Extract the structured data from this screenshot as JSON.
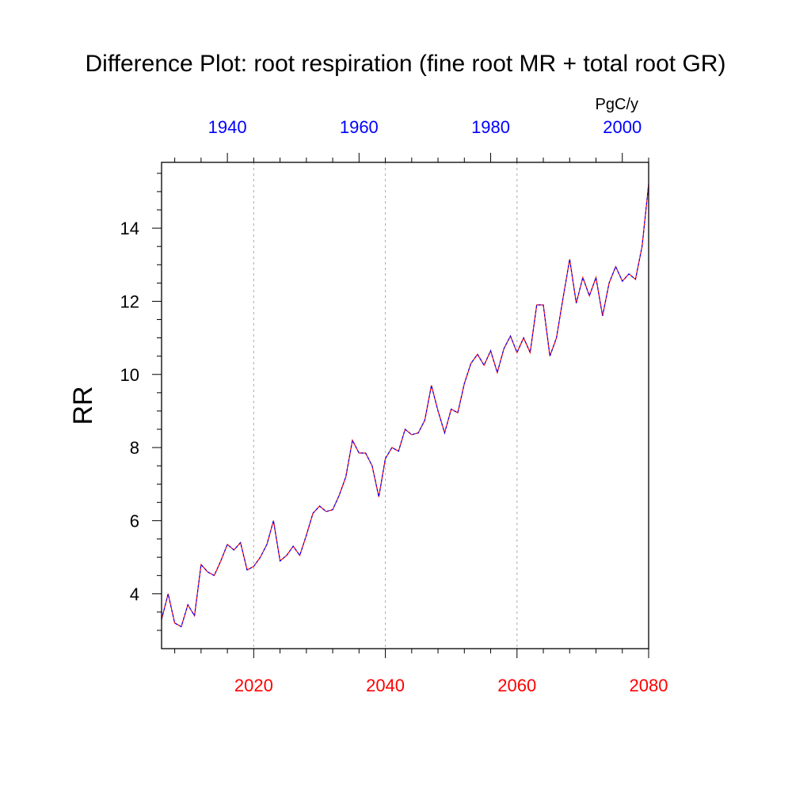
{
  "chart_data": {
    "type": "line",
    "title": "Difference Plot: root respiration (fine root MR + total root GR)",
    "ylabel": "RR",
    "units": "PgC/y",
    "xlim_bottom": [
      2006,
      2080
    ],
    "xlim_top": [
      1930,
      2004
    ],
    "ylim": [
      2.5,
      15.8
    ],
    "x_bottom_ticks": [
      2020,
      2040,
      2060,
      2080
    ],
    "x_bottom_tick_labels": [
      "2020",
      "2040",
      "2060",
      "2080"
    ],
    "x_top_ticks": [
      1940,
      1960,
      1980,
      2000
    ],
    "x_top_tick_labels": [
      "1940",
      "1960",
      "1980",
      "2000"
    ],
    "y_ticks": [
      4,
      6,
      8,
      10,
      12,
      14
    ],
    "y_tick_labels": [
      "4",
      "6",
      "8",
      "10",
      "12",
      "14"
    ],
    "grid": "vertical dashed gray at bottom-axis major ticks",
    "colors": {
      "bottom_axis_labels": "#ff0000",
      "top_axis_labels": "#0000ff",
      "line_primary": "#ff0000",
      "line_secondary": "#0000ff",
      "grid": "#aaaaaa",
      "axis": "#000000"
    },
    "series": [
      {
        "name": "difference",
        "x": [
          2006,
          2007,
          2008,
          2009,
          2010,
          2011,
          2012,
          2013,
          2014,
          2015,
          2016,
          2017,
          2018,
          2019,
          2020,
          2021,
          2022,
          2023,
          2024,
          2025,
          2026,
          2027,
          2028,
          2029,
          2030,
          2031,
          2032,
          2033,
          2034,
          2035,
          2036,
          2037,
          2038,
          2039,
          2040,
          2041,
          2042,
          2043,
          2044,
          2045,
          2046,
          2047,
          2048,
          2049,
          2050,
          2051,
          2052,
          2053,
          2054,
          2055,
          2056,
          2057,
          2058,
          2059,
          2060,
          2061,
          2062,
          2063,
          2064,
          2065,
          2066,
          2067,
          2068,
          2069,
          2070,
          2071,
          2072,
          2073,
          2074,
          2075,
          2076,
          2077,
          2078,
          2079,
          2080
        ],
        "values": [
          3.3,
          4.0,
          3.2,
          3.1,
          3.7,
          3.4,
          4.8,
          4.6,
          4.5,
          4.9,
          5.35,
          5.2,
          5.4,
          4.65,
          4.75,
          5.0,
          5.35,
          6.0,
          4.9,
          5.05,
          5.3,
          5.05,
          5.6,
          6.2,
          6.4,
          6.25,
          6.3,
          6.7,
          7.2,
          8.2,
          7.85,
          7.85,
          7.5,
          6.65,
          7.7,
          8.0,
          7.9,
          8.5,
          8.35,
          8.4,
          8.75,
          9.7,
          9.0,
          8.4,
          9.05,
          8.95,
          9.75,
          10.3,
          10.55,
          10.25,
          10.65,
          10.05,
          10.7,
          11.05,
          10.6,
          11.0,
          10.6,
          11.9,
          11.9,
          10.5,
          11.0,
          12.1,
          13.15,
          11.95,
          12.65,
          12.15,
          12.65,
          11.6,
          12.5,
          12.95,
          12.55,
          12.75,
          12.6,
          13.5,
          15.2
        ]
      }
    ]
  }
}
